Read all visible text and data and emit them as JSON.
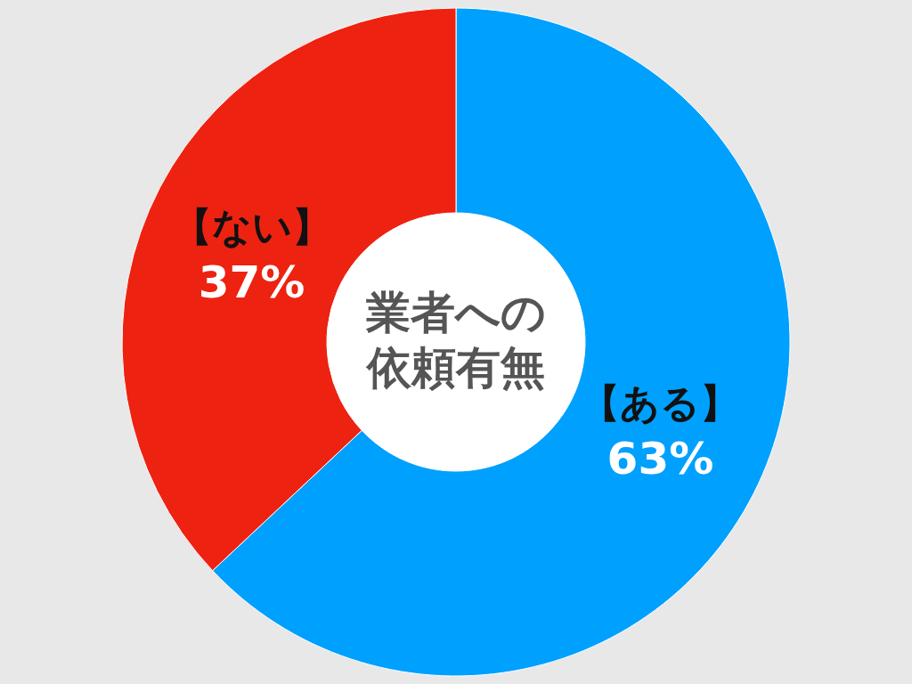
{
  "chart_data": {
    "type": "donut",
    "title": "業者への依頼有無",
    "categories": [
      "【ある】",
      "【ない】"
    ],
    "values": [
      63,
      37
    ],
    "colors": [
      "#00a0ff",
      "#ee2211"
    ],
    "value_labels": [
      "63%",
      "37%"
    ]
  }
}
